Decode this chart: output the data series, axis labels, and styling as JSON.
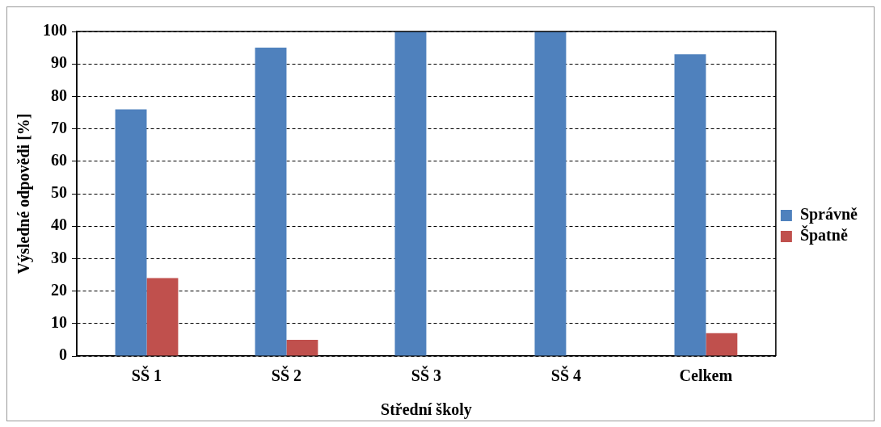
{
  "chart_data": {
    "type": "bar",
    "xlabel": "Střední školy",
    "ylabel": "Výsledné odpovědi [%]",
    "categories": [
      "SŠ 1",
      "SŠ 2",
      "SŠ 3",
      "SŠ 4",
      "Celkem"
    ],
    "series": [
      {
        "name": "Správně",
        "color": "#4f81bd",
        "values": [
          76,
          95,
          100,
          100,
          93
        ]
      },
      {
        "name": "Špatně",
        "color": "#c0504d",
        "values": [
          24,
          5,
          0,
          0,
          7
        ]
      }
    ],
    "ylim": [
      0,
      100
    ],
    "yticks": [
      0,
      10,
      20,
      30,
      40,
      50,
      60,
      70,
      80,
      90,
      100
    ],
    "grid": "y",
    "legend": "right"
  }
}
